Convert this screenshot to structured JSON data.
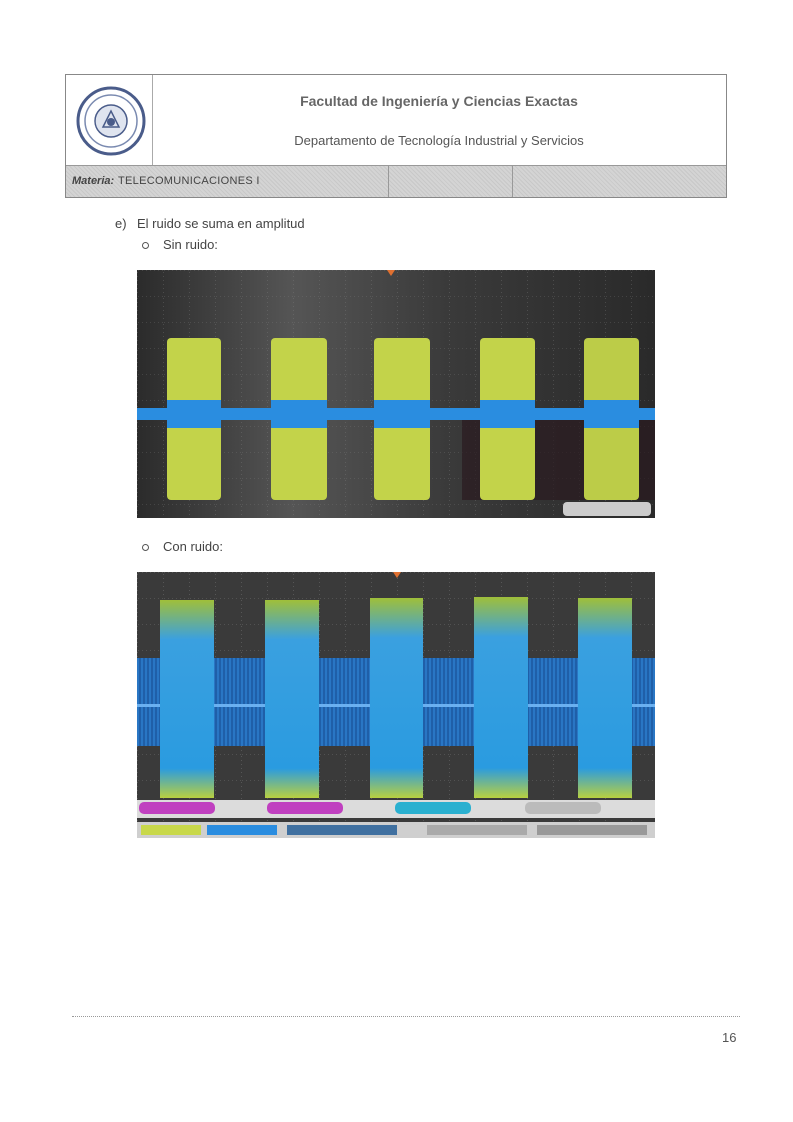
{
  "header": {
    "logo": {
      "icon": "university-seal-icon"
    },
    "faculty": "Facultad de Ingeniería y Ciencias Exactas",
    "department": "Departamento de Tecnología Industrial y Servicios",
    "subject_label": "Materia:",
    "subject_value": "TELECOMUNICACIONES I"
  },
  "content": {
    "item_marker": "e)",
    "item_text": "El ruido se suma en amplitud",
    "bullet_no_noise": "Sin ruido:",
    "bullet_with_noise": "Con ruido:",
    "colors": {
      "trace_yellow": "#c8d84a",
      "trace_blue": "#2a8de0",
      "scope_bg": "#1a1a1a"
    }
  },
  "footer": {
    "page_number": "16"
  }
}
